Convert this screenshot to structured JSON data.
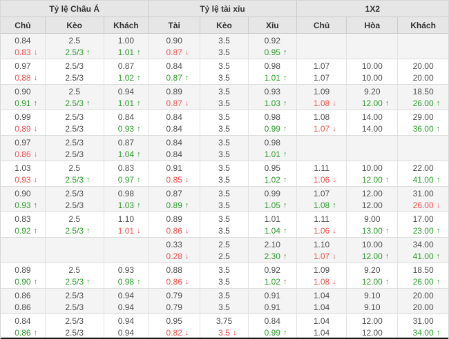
{
  "header": {
    "groups": [
      {
        "label": "Tỷ lệ Châu Á",
        "columns": [
          "Chủ",
          "Kèo",
          "Khách"
        ]
      },
      {
        "label": "Tỷ lệ tài xỉu",
        "columns": [
          "Tài",
          "Kèo",
          "Xỉu"
        ]
      },
      {
        "label": "1X2",
        "columns": [
          "Chủ",
          "Hòa",
          "Khách"
        ]
      }
    ]
  },
  "rows": [
    {
      "cells": [
        [
          "0.84",
          "0.83",
          "down"
        ],
        [
          "2.5",
          "2.5/3",
          "up"
        ],
        [
          "1.00",
          "1.01",
          "up"
        ],
        [
          "0.90",
          "0.87",
          "down"
        ],
        [
          "3.5",
          "3.5",
          ""
        ],
        [
          "0.92",
          "0.95",
          "up"
        ],
        [
          "",
          "",
          ""
        ],
        [
          "",
          "",
          ""
        ],
        [
          "",
          "",
          ""
        ]
      ]
    },
    {
      "cells": [
        [
          "0.97",
          "0.88",
          "down"
        ],
        [
          "2.5/3",
          "2.5/3",
          ""
        ],
        [
          "0.87",
          "1.02",
          "up"
        ],
        [
          "0.84",
          "0.87",
          "up"
        ],
        [
          "3.5",
          "3.5",
          ""
        ],
        [
          "0.98",
          "1.01",
          "up"
        ],
        [
          "1.07",
          "1.07",
          ""
        ],
        [
          "10.00",
          "10.00",
          ""
        ],
        [
          "20.00",
          "20.00",
          ""
        ]
      ]
    },
    {
      "cells": [
        [
          "0.90",
          "0.91",
          "up"
        ],
        [
          "2.5",
          "2.5/3",
          "up"
        ],
        [
          "0.94",
          "1.01",
          "up"
        ],
        [
          "0.89",
          "0.87",
          "down"
        ],
        [
          "3.5",
          "3.5",
          ""
        ],
        [
          "0.93",
          "1.03",
          "up"
        ],
        [
          "1.09",
          "1.08",
          "down"
        ],
        [
          "9.20",
          "12.00",
          "up"
        ],
        [
          "18.50",
          "26.00",
          "up"
        ]
      ]
    },
    {
      "cells": [
        [
          "0.99",
          "0.89",
          "down"
        ],
        [
          "2.5/3",
          "2.5/3",
          ""
        ],
        [
          "0.84",
          "0.93",
          "up"
        ],
        [
          "0.84",
          "0.84",
          ""
        ],
        [
          "3.5",
          "3.5",
          ""
        ],
        [
          "0.98",
          "0.99",
          "up"
        ],
        [
          "1.08",
          "1.07",
          "down"
        ],
        [
          "14.00",
          "14.00",
          ""
        ],
        [
          "29.00",
          "36.00",
          "up"
        ]
      ]
    },
    {
      "cells": [
        [
          "0.97",
          "0.86",
          "down"
        ],
        [
          "2.5/3",
          "2.5/3",
          ""
        ],
        [
          "0.87",
          "1.04",
          "up"
        ],
        [
          "0.84",
          "0.84",
          ""
        ],
        [
          "3.5",
          "3.5",
          ""
        ],
        [
          "0.98",
          "1.01",
          "up"
        ],
        [
          "",
          "",
          ""
        ],
        [
          "",
          "",
          ""
        ],
        [
          "",
          "",
          ""
        ]
      ]
    },
    {
      "cells": [
        [
          "1.03",
          "0.93",
          "down"
        ],
        [
          "2.5",
          "2.5/3",
          "up"
        ],
        [
          "0.83",
          "0.97",
          "up"
        ],
        [
          "0.91",
          "0.85",
          "down"
        ],
        [
          "3.5",
          "3.5",
          ""
        ],
        [
          "0.95",
          "1.02",
          "up"
        ],
        [
          "1.11",
          "1.06",
          "down"
        ],
        [
          "10.00",
          "12.00",
          "up"
        ],
        [
          "22.00",
          "41.00",
          "up"
        ]
      ]
    },
    {
      "cells": [
        [
          "0.90",
          "0.93",
          "up"
        ],
        [
          "2.5/3",
          "2.5/3",
          ""
        ],
        [
          "0.98",
          "1.03",
          "up"
        ],
        [
          "0.87",
          "0.89",
          "up"
        ],
        [
          "3.5",
          "3.5",
          ""
        ],
        [
          "0.99",
          "1.05",
          "up"
        ],
        [
          "1.07",
          "1.08",
          "up"
        ],
        [
          "12.00",
          "12.00",
          ""
        ],
        [
          "31.00",
          "26.00",
          "down"
        ]
      ]
    },
    {
      "cells": [
        [
          "0.83",
          "0.92",
          "up"
        ],
        [
          "2.5",
          "2.5/3",
          "up"
        ],
        [
          "1.10",
          "1.01",
          "down"
        ],
        [
          "0.89",
          "0.86",
          "down"
        ],
        [
          "3.5",
          "3.5",
          ""
        ],
        [
          "1.01",
          "1.04",
          "up"
        ],
        [
          "1.11",
          "1.06",
          "down"
        ],
        [
          "9.00",
          "13.00",
          "up"
        ],
        [
          "17.00",
          "23.00",
          "up"
        ]
      ]
    },
    {
      "cells": [
        [
          "",
          "",
          ""
        ],
        [
          "",
          "",
          ""
        ],
        [
          "",
          "",
          ""
        ],
        [
          "0.33",
          "0.28",
          "down"
        ],
        [
          "2.5",
          "2.5",
          ""
        ],
        [
          "2.10",
          "2.30",
          "up"
        ],
        [
          "1.10",
          "1.07",
          "down"
        ],
        [
          "10.00",
          "12.00",
          "up"
        ],
        [
          "34.00",
          "41.00",
          "up"
        ]
      ]
    },
    {
      "cells": [
        [
          "0.89",
          "0.90",
          "up"
        ],
        [
          "2.5",
          "2.5/3",
          "up"
        ],
        [
          "0.93",
          "0.98",
          "up"
        ],
        [
          "0.88",
          "0.86",
          "down"
        ],
        [
          "3.5",
          "3.5",
          ""
        ],
        [
          "0.92",
          "1.02",
          "up"
        ],
        [
          "1.09",
          "1.08",
          "down"
        ],
        [
          "9.20",
          "12.00",
          "up"
        ],
        [
          "18.50",
          "26.00",
          "up"
        ]
      ]
    },
    {
      "cells": [
        [
          "0.86",
          "0.86",
          ""
        ],
        [
          "2.5/3",
          "2.5/3",
          ""
        ],
        [
          "0.94",
          "0.94",
          ""
        ],
        [
          "0.79",
          "0.79",
          ""
        ],
        [
          "3.5",
          "3.5",
          ""
        ],
        [
          "0.91",
          "0.91",
          ""
        ],
        [
          "1.04",
          "1.04",
          ""
        ],
        [
          "9.10",
          "9.10",
          ""
        ],
        [
          "20.00",
          "20.00",
          ""
        ]
      ]
    },
    {
      "cells": [
        [
          "0.84",
          "0.86",
          "up"
        ],
        [
          "2.5/3",
          "2.5/3",
          ""
        ],
        [
          "0.94",
          "0.94",
          ""
        ],
        [
          "0.95",
          "0.82",
          "down"
        ],
        [
          "3.75",
          "3.5",
          "down"
        ],
        [
          "0.84",
          "0.99",
          "up"
        ],
        [
          "1.04",
          "1.04",
          ""
        ],
        [
          "12.00",
          "12.00",
          ""
        ],
        [
          "31.00",
          "34.00",
          "up"
        ]
      ]
    }
  ],
  "icons": {
    "up_arrow": "↑",
    "down_arrow": "↓"
  },
  "colors": {
    "up": "#2e9b2e",
    "down": "#ef5350",
    "text": "#4f4f4f",
    "header_bg": "#e6e6e6",
    "row_alt_bg": "#f4f4f4",
    "border": "#dcdcdc"
  }
}
